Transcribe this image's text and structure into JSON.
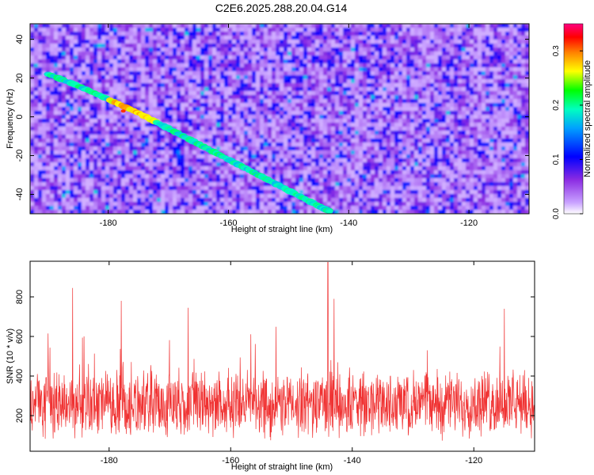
{
  "title": "C2E6.2025.288.20.04.G14",
  "chart_data": [
    {
      "type": "heatmap",
      "xlabel": "Height of straight line (km)",
      "ylabel": "Frequency (Hz)",
      "xlim": [
        -193,
        -110
      ],
      "ylim": [
        -50,
        48
      ],
      "xticks": [
        -180,
        -160,
        -140,
        -120
      ],
      "yticks": [
        -40,
        -20,
        0,
        20,
        40
      ],
      "colorbar": {
        "label": "Normalized spectral amplitude",
        "range": [
          0,
          0.35
        ],
        "ticks": [
          0.0,
          0.1,
          0.2,
          0.3
        ],
        "colors": [
          "#ffffff",
          "#b060ff",
          "#0000ff",
          "#00c8ff",
          "#00ff00",
          "#ffff00",
          "#ff8000",
          "#ff0000",
          "#ff0080"
        ]
      },
      "ridges": [
        {
          "x": [
            -190,
            -185,
            -180,
            -175,
            -170,
            -165,
            -160,
            -155,
            -150,
            -145,
            -143
          ],
          "y": [
            22,
            16,
            9,
            2,
            -6,
            -14,
            -22,
            -30,
            -38,
            -46,
            -49
          ]
        }
      ],
      "grid": false
    },
    {
      "type": "line",
      "xlabel": "Height of straight line (km)",
      "ylabel": "SNR (10 * v/v)",
      "xlim": [
        -193,
        -110
      ],
      "ylim": [
        20,
        980
      ],
      "xticks": [
        -180,
        -160,
        -140,
        -120
      ],
      "yticks": [
        200,
        400,
        600,
        800
      ],
      "color": "#f03232",
      "baseline": 260,
      "peaks": [
        {
          "x": -186,
          "y": 845
        },
        {
          "x": -178,
          "y": 780
        },
        {
          "x": -167,
          "y": 745
        },
        {
          "x": -144,
          "y": 975
        },
        {
          "x": -143,
          "y": 790
        },
        {
          "x": -115,
          "y": 740
        }
      ],
      "grid": false
    }
  ]
}
